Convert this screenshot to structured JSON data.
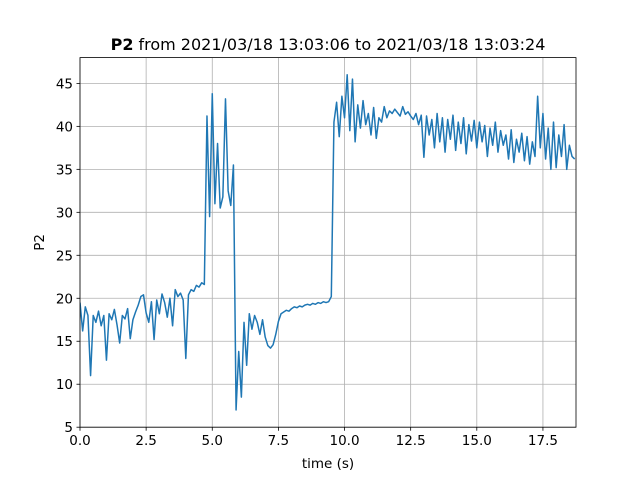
{
  "chart_data": {
    "type": "line",
    "title": {
      "name": "P2",
      "text": "from 2021/03/18 13:03:06 to 2021/03/18 13:03:24"
    },
    "xlabel": "time (s)",
    "ylabel": "P2",
    "color": "#1f77b4",
    "grid": true,
    "xlim": [
      0,
      18.75
    ],
    "ylim": [
      5,
      48
    ],
    "xticks": [
      {
        "value": 0,
        "label": "0.0"
      },
      2.5,
      {
        "value": 5,
        "label": "5.0"
      },
      7.5,
      {
        "value": 10,
        "label": "10.0"
      },
      12.5,
      {
        "value": 15,
        "label": "15.0"
      },
      17.5
    ],
    "yticks": [
      5,
      10,
      15,
      20,
      25,
      30,
      35,
      40,
      45
    ],
    "x": [
      0,
      0.1,
      0.2,
      0.3,
      0.4,
      0.5,
      0.6,
      0.7,
      0.8,
      0.9,
      1,
      1.1,
      1.2,
      1.3,
      1.4,
      1.5,
      1.6,
      1.7,
      1.8,
      1.9,
      2,
      2.1,
      2.2,
      2.3,
      2.4,
      2.5,
      2.6,
      2.7,
      2.8,
      2.9,
      3,
      3.1,
      3.2,
      3.3,
      3.4,
      3.5,
      3.6,
      3.7,
      3.8,
      3.9,
      4,
      4.1,
      4.2,
      4.3,
      4.4,
      4.5,
      4.6,
      4.7,
      4.8,
      4.9,
      5,
      5.1,
      5.2,
      5.3,
      5.4,
      5.5,
      5.6,
      5.7,
      5.8,
      5.9,
      6,
      6.1,
      6.2,
      6.3,
      6.4,
      6.5,
      6.6,
      6.7,
      6.8,
      6.9,
      7,
      7.1,
      7.2,
      7.3,
      7.4,
      7.5,
      7.6,
      7.7,
      7.8,
      7.9,
      8,
      8.1,
      8.2,
      8.3,
      8.4,
      8.5,
      8.6,
      8.7,
      8.8,
      8.9,
      9,
      9.1,
      9.2,
      9.3,
      9.4,
      9.5,
      9.6,
      9.7,
      9.8,
      9.9,
      10,
      10.1,
      10.2,
      10.3,
      10.4,
      10.5,
      10.6,
      10.7,
      10.8,
      10.9,
      11,
      11.1,
      11.2,
      11.3,
      11.4,
      11.5,
      11.6,
      11.7,
      11.8,
      11.9,
      12,
      12.1,
      12.2,
      12.3,
      12.4,
      12.5,
      12.6,
      12.7,
      12.8,
      12.9,
      13,
      13.1,
      13.2,
      13.3,
      13.4,
      13.5,
      13.6,
      13.7,
      13.8,
      13.9,
      14,
      14.1,
      14.2,
      14.3,
      14.4,
      14.5,
      14.6,
      14.7,
      14.8,
      14.9,
      15,
      15.1,
      15.2,
      15.3,
      15.4,
      15.5,
      15.6,
      15.7,
      15.8,
      15.9,
      16,
      16.1,
      16.2,
      16.3,
      16.4,
      16.5,
      16.6,
      16.7,
      16.8,
      16.9,
      17,
      17.1,
      17.2,
      17.3,
      17.4,
      17.5,
      17.6,
      17.7,
      17.8,
      17.9,
      18,
      18.1,
      18.2,
      18.3,
      18.4,
      18.5,
      18.6,
      18.7
    ],
    "values": [
      19.5,
      16.2,
      19,
      18,
      11,
      18,
      17.2,
      18.5,
      16.8,
      18,
      12.8,
      18.2,
      17.5,
      18.7,
      16.9,
      14.8,
      18,
      17.6,
      18.8,
      15.3,
      17.5,
      18.4,
      19.2,
      20.2,
      20.4,
      18.3,
      17.2,
      19.6,
      15.2,
      19.8,
      18.2,
      20.5,
      19.5,
      17.8,
      20,
      16.8,
      21,
      20.2,
      20.6,
      19.8,
      13,
      20.4,
      21,
      20.8,
      21.5,
      21.3,
      21.8,
      21.6,
      41.2,
      29.5,
      43.8,
      31,
      38,
      30.5,
      31.8,
      43.2,
      32.5,
      30.8,
      35.5,
      7,
      13.8,
      8.5,
      17.2,
      12.2,
      18.2,
      16.4,
      18,
      17.2,
      15.8,
      17.5,
      15.5,
      14.5,
      14.2,
      14.6,
      15.8,
      17.3,
      18.2,
      18.4,
      18.6,
      18.5,
      18.8,
      19,
      18.9,
      19.1,
      19,
      19.2,
      19.3,
      19.2,
      19.4,
      19.3,
      19.5,
      19.4,
      19.6,
      19.5,
      19.6,
      20.2,
      40.5,
      42.8,
      38.8,
      43.5,
      41,
      46,
      39.5,
      45.5,
      38.2,
      42.5,
      39.8,
      43,
      40.2,
      41.5,
      39,
      42.2,
      38.6,
      41,
      40.5,
      42.3,
      41,
      41.8,
      41.5,
      42,
      41.6,
      41.2,
      42.3,
      41.4,
      41.7,
      41.2,
      40.8,
      41.5,
      40.2,
      41.3,
      36.4,
      41.2,
      39,
      40.8,
      37.5,
      41.5,
      38.2,
      41,
      37,
      40.8,
      38.5,
      41.3,
      37.2,
      40.5,
      38,
      41,
      36.8,
      40.2,
      38.3,
      40.7,
      37.5,
      40.5,
      38.2,
      40.1,
      36.5,
      39.8,
      37.8,
      40.5,
      37,
      39.5,
      37.8,
      39,
      36.2,
      39.6,
      35.8,
      38.5,
      37,
      39.2,
      36,
      38.8,
      35.6,
      38.2,
      36.5,
      43.5,
      37.5,
      41.5,
      36.2,
      39.8,
      35,
      40.5,
      35.2,
      39,
      36.5,
      40.2,
      35,
      37.8,
      36.5,
      36.2
    ]
  }
}
